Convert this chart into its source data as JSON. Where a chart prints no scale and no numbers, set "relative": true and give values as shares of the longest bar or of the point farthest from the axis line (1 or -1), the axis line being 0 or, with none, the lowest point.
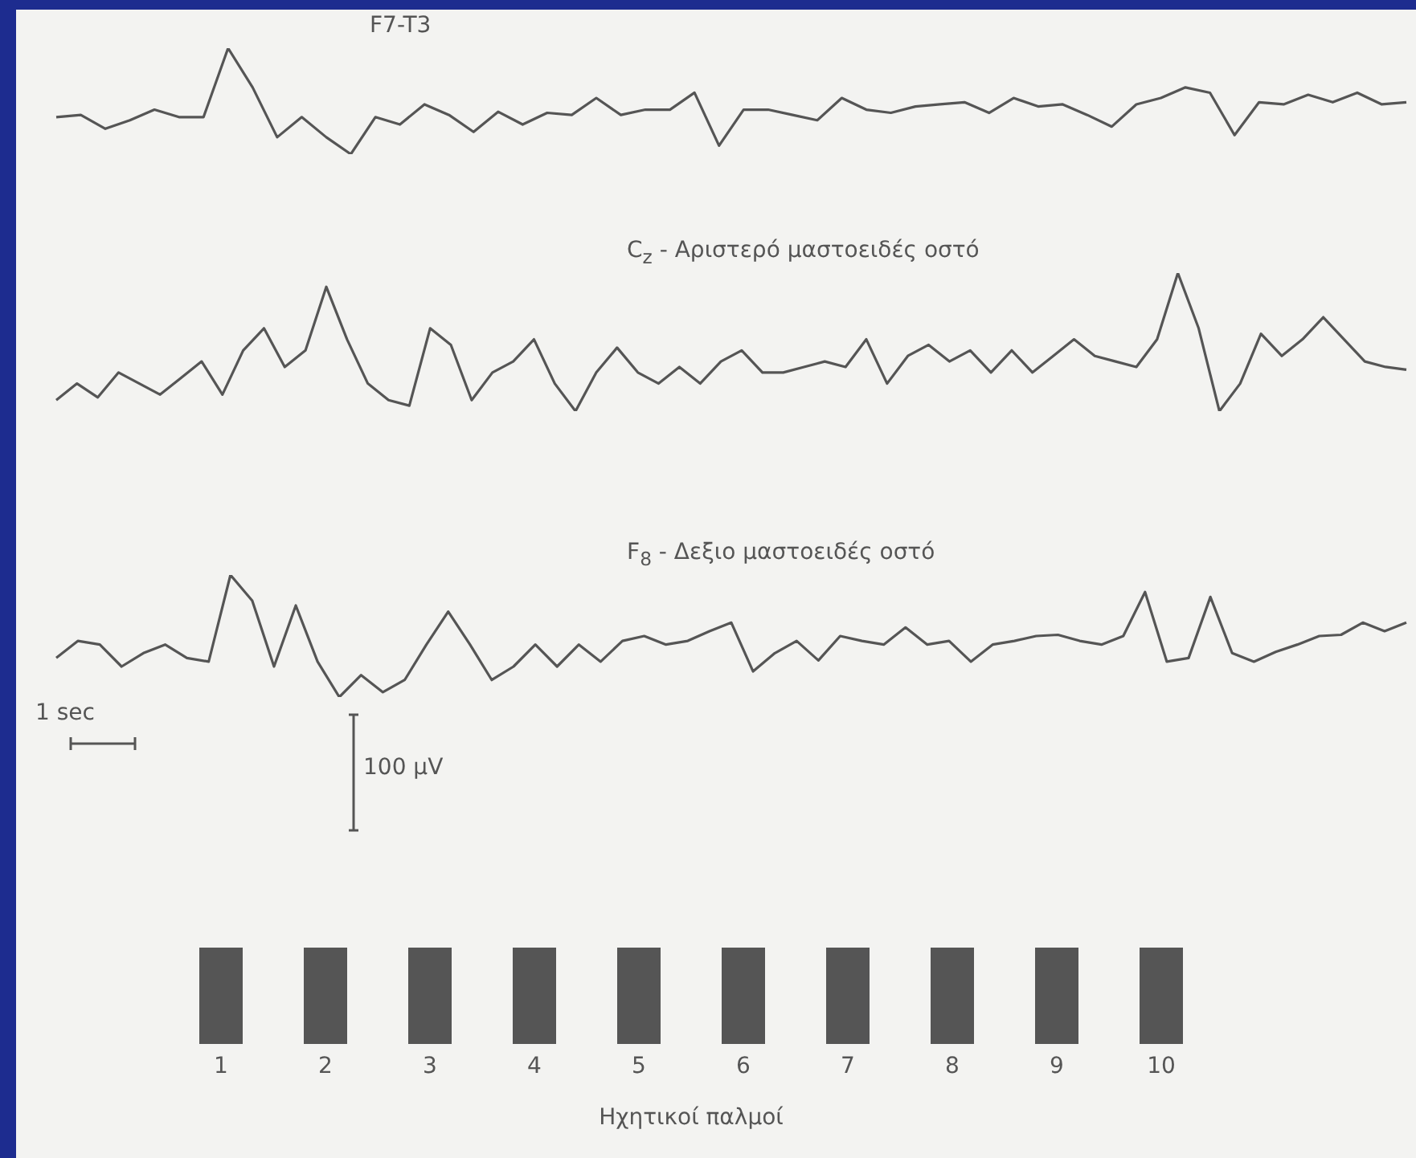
{
  "chart_data": [
    {
      "type": "line",
      "title": "F7-T3",
      "relative": true,
      "legend": false,
      "grid": false,
      "marker": "none",
      "categories": [
        null,
        null,
        null,
        null,
        null,
        null,
        null,
        null,
        null,
        null,
        null,
        null,
        null,
        null,
        null,
        null,
        null,
        null,
        null,
        null,
        null,
        null,
        null,
        null,
        null,
        null,
        null,
        null,
        null,
        null,
        null,
        null,
        null,
        null,
        null,
        null,
        null,
        null,
        null,
        null,
        null,
        null,
        null,
        null,
        null,
        null,
        null,
        null,
        null,
        null,
        null,
        null,
        null,
        null,
        null,
        null
      ],
      "series": [
        {
          "color": "#555555",
          "values": [
            0.35,
            0.37,
            0.24,
            0.32,
            0.42,
            0.35,
            0.35,
            1,
            0.63,
            0.16,
            0.35,
            0.16,
            0,
            0.35,
            0.28,
            0.47,
            0.37,
            0.21,
            0.4,
            0.28,
            0.39,
            0.37,
            0.53,
            0.37,
            0.42,
            0.42,
            0.58,
            0.08,
            0.42,
            0.42,
            0.37,
            0.32,
            0.53,
            0.42,
            0.39,
            0.45,
            0.47,
            0.49,
            0.39,
            0.53,
            0.45,
            0.47,
            0.37,
            0.26,
            0.47,
            0.53,
            0.63,
            0.58,
            0.18,
            0.49,
            0.47,
            0.56,
            0.49,
            0.58,
            0.47,
            0.49
          ]
        }
      ]
    },
    {
      "type": "line",
      "title": "C$_{z}$ - Αριστερό μαστοειδές οστό",
      "relative": true,
      "legend": false,
      "grid": false,
      "marker": "none",
      "categories": [
        null,
        null,
        null,
        null,
        null,
        null,
        null,
        null,
        null,
        null,
        null,
        null,
        null,
        null,
        null,
        null,
        null,
        null,
        null,
        null,
        null,
        null,
        null,
        null,
        null,
        null,
        null,
        null,
        null,
        null,
        null,
        null,
        null,
        null,
        null,
        null,
        null,
        null,
        null,
        null,
        null,
        null,
        null,
        null,
        null,
        null,
        null,
        null,
        null,
        null,
        null,
        null,
        null,
        null,
        null,
        null,
        null,
        null,
        null,
        null,
        null,
        null,
        null,
        null,
        null,
        null
      ],
      "series": [
        {
          "color": "#555555",
          "values": [
            0.08,
            0.2,
            0.1,
            0.28,
            0.2,
            0.12,
            0.24,
            0.36,
            0.12,
            0.44,
            0.6,
            0.32,
            0.44,
            0.9,
            0.52,
            0.2,
            0.08,
            0.04,
            0.6,
            0.48,
            0.08,
            0.28,
            0.36,
            0.52,
            0.2,
            0,
            0.28,
            0.46,
            0.28,
            0.2,
            0.32,
            0.2,
            0.36,
            0.44,
            0.28,
            0.28,
            0.32,
            0.36,
            0.32,
            0.52,
            0.2,
            0.4,
            0.48,
            0.36,
            0.44,
            0.28,
            0.44,
            0.28,
            0.4,
            0.52,
            0.4,
            0.36,
            0.32,
            0.52,
            1,
            0.6,
            0,
            0.2,
            0.56,
            0.4,
            0.52,
            0.68,
            0.52,
            0.36,
            0.32,
            0.3
          ]
        }
      ]
    },
    {
      "type": "line",
      "title": "F$_{8}$ - Δεξιο μαστοειδές οστό",
      "relative": true,
      "legend": false,
      "grid": false,
      "marker": "none",
      "annotations": [
        "1 sec",
        "100 µV"
      ],
      "categories": [
        null,
        null,
        null,
        null,
        null,
        null,
        null,
        null,
        null,
        null,
        null,
        null,
        null,
        null,
        null,
        null,
        null,
        null,
        null,
        null,
        null,
        null,
        null,
        null,
        null,
        null,
        null,
        null,
        null,
        null,
        null,
        null,
        null,
        null,
        null,
        null,
        null,
        null,
        null,
        null,
        null,
        null,
        null,
        null,
        null,
        null,
        null,
        null,
        null,
        null,
        null,
        null,
        null,
        null,
        null,
        null,
        null,
        null,
        null,
        null,
        null,
        null,
        null
      ],
      "series": [
        {
          "color": "#555555",
          "values": [
            0.32,
            0.46,
            0.43,
            0.25,
            0.36,
            0.43,
            0.32,
            0.29,
            1,
            0.79,
            0.25,
            0.75,
            0.29,
            0,
            0.18,
            0.04,
            0.14,
            0.43,
            0.7,
            0.43,
            0.14,
            0.25,
            0.43,
            0.25,
            0.43,
            0.29,
            0.46,
            0.5,
            0.43,
            0.46,
            0.54,
            0.61,
            0.21,
            0.36,
            0.46,
            0.3,
            0.5,
            0.46,
            0.43,
            0.57,
            0.43,
            0.46,
            0.29,
            0.43,
            0.46,
            0.5,
            0.51,
            0.46,
            0.43,
            0.5,
            0.86,
            0.29,
            0.32,
            0.82,
            0.36,
            0.29,
            0.37,
            0.43,
            0.5,
            0.51,
            0.61,
            0.54,
            0.61
          ]
        }
      ]
    },
    {
      "type": "bar",
      "xlabel": "Ηχητικοί παλμοί",
      "relative": true,
      "legend": false,
      "grid": false,
      "categories": [
        "1",
        "2",
        "3",
        "4",
        "5",
        "6",
        "7",
        "8",
        "9",
        "10"
      ],
      "values": [
        1,
        1,
        1,
        1,
        1,
        1,
        1,
        1,
        1,
        1
      ],
      "color": "#555555"
    }
  ]
}
